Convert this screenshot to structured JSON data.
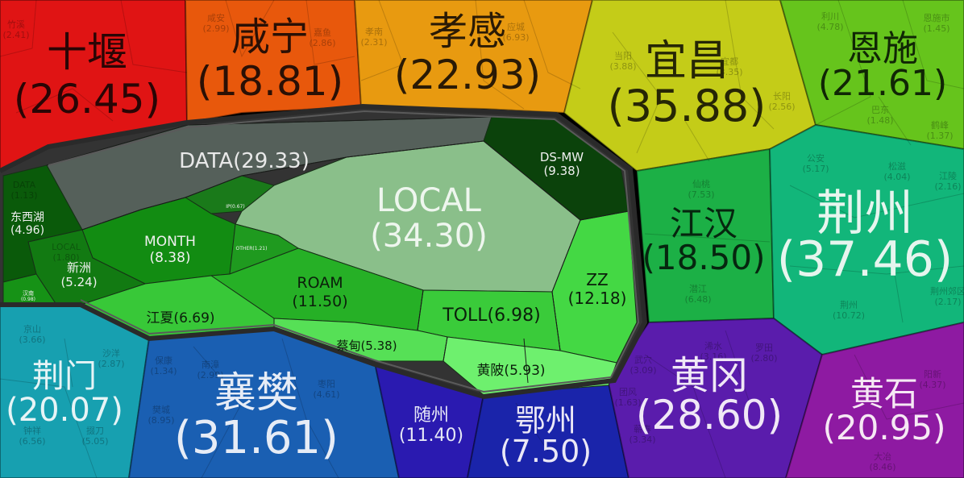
{
  "chart_data": {
    "type": "voronoi-treemap",
    "title": "",
    "regions": [
      {
        "name": "十堰",
        "value": "26.45",
        "color": "#e01414"
      },
      {
        "name": "咸宁",
        "value": "18.81",
        "color": "#e8580c"
      },
      {
        "name": "孝感",
        "value": "22.93",
        "color": "#e89a10"
      },
      {
        "name": "宜昌",
        "value": "35.88",
        "color": "#c4cc18"
      },
      {
        "name": "恩施",
        "value": "21.61",
        "color": "#66c41c"
      },
      {
        "name": "江汉",
        "value": "18.50",
        "color": "#1cb046"
      },
      {
        "name": "荆州",
        "value": "37.46",
        "color": "#12b67a"
      },
      {
        "name": "荆门",
        "value": "20.07",
        "color": "#17a0b0"
      },
      {
        "name": "襄樊",
        "value": "31.61",
        "color": "#1a5fb2"
      },
      {
        "name": "随州",
        "value": "11.40",
        "color": "#2a1ab0"
      },
      {
        "name": "鄂州",
        "value": "7.50",
        "color": "#1a24aa"
      },
      {
        "name": "黄冈",
        "value": "28.60",
        "color": "#5a1cac"
      },
      {
        "name": "黄石",
        "value": "20.95",
        "color": "#8e1aa2"
      }
    ],
    "wuhan": [
      {
        "name": "DATA",
        "value": "29.33",
        "color": "#55605a"
      },
      {
        "name": "LOCAL",
        "value": "34.30",
        "color": "#8abf8a"
      },
      {
        "name": "DS-MW",
        "value": "9.38",
        "color": "#0b420b"
      },
      {
        "name": "MONTH",
        "value": "8.38",
        "color": "#128c12"
      },
      {
        "name": "ROAM",
        "value": "11.50",
        "color": "#26b026"
      },
      {
        "name": "ZZ",
        "value": "12.18",
        "color": "#44d844"
      },
      {
        "name": "TOLL",
        "value": "6.98",
        "color": "#3acb3a"
      },
      {
        "name": "江夏",
        "value": "6.69",
        "color": "#38c838"
      },
      {
        "name": "蔡甸",
        "value": "5.38",
        "color": "#56e056"
      },
      {
        "name": "黄陂",
        "value": "5.93",
        "color": "#6ef06e"
      },
      {
        "name": "新洲",
        "value": "5.24",
        "color": "#127a12"
      },
      {
        "name": "东西湖",
        "value": "4.96",
        "color": "#0a5a0a"
      },
      {
        "name": "IP",
        "value": "0.67",
        "color": "#1a7a1a"
      },
      {
        "name": "OTHER",
        "value": "1.21",
        "color": "#1f9a1f"
      },
      {
        "name": "汉南",
        "value": "0.98",
        "color": "#169216"
      }
    ],
    "sub_labels": [
      {
        "name": "竹溪",
        "value": "2.41"
      },
      {
        "name": "咸安",
        "value": "2.99"
      },
      {
        "name": "嘉鱼",
        "value": "2.86"
      },
      {
        "name": "孝南",
        "value": "2.31"
      },
      {
        "name": "应城",
        "value": "6.93"
      },
      {
        "name": "宜都",
        "value": "3.35"
      },
      {
        "name": "长阳",
        "value": "2.56"
      },
      {
        "name": "当阳",
        "value": "3.88"
      },
      {
        "name": "利川",
        "value": "4.78"
      },
      {
        "name": "恩施市",
        "value": "1.45"
      },
      {
        "name": "巴东",
        "value": "1.48"
      },
      {
        "name": "鹤峰",
        "value": "1.37"
      },
      {
        "name": "松滋",
        "value": "4.04"
      },
      {
        "name": "公安",
        "value": "5.17"
      },
      {
        "name": "江陵",
        "value": "2.16"
      },
      {
        "name": "仙桃",
        "value": "7.53"
      },
      {
        "name": "潜江",
        "value": "6.48"
      },
      {
        "name": "荆州",
        "value": "10.72"
      },
      {
        "name": "荆州郊区",
        "value": "2.17"
      },
      {
        "name": "京山",
        "value": "3.66"
      },
      {
        "name": "沙洋",
        "value": "2.87"
      },
      {
        "name": "钟祥",
        "value": "6.56"
      },
      {
        "name": "掇刀",
        "value": "5.05"
      },
      {
        "name": "保康",
        "value": "1.34"
      },
      {
        "name": "南漳",
        "value": "2.99"
      },
      {
        "name": "枣阳",
        "value": "4.61"
      },
      {
        "name": "樊城",
        "value": "8.95"
      },
      {
        "name": "武穴",
        "value": "3.09"
      },
      {
        "name": "浠水",
        "value": "3.16"
      },
      {
        "name": "团风",
        "value": "1.63"
      },
      {
        "name": "蕲春",
        "value": "3.34"
      },
      {
        "name": "阳新",
        "value": "4.37"
      },
      {
        "name": "大冶",
        "value": "8.46"
      },
      {
        "name": "罗田",
        "value": "2.80"
      },
      {
        "name": "DATA",
        "value": "1.13"
      },
      {
        "name": "LOCAL",
        "value": "1.80"
      }
    ]
  }
}
